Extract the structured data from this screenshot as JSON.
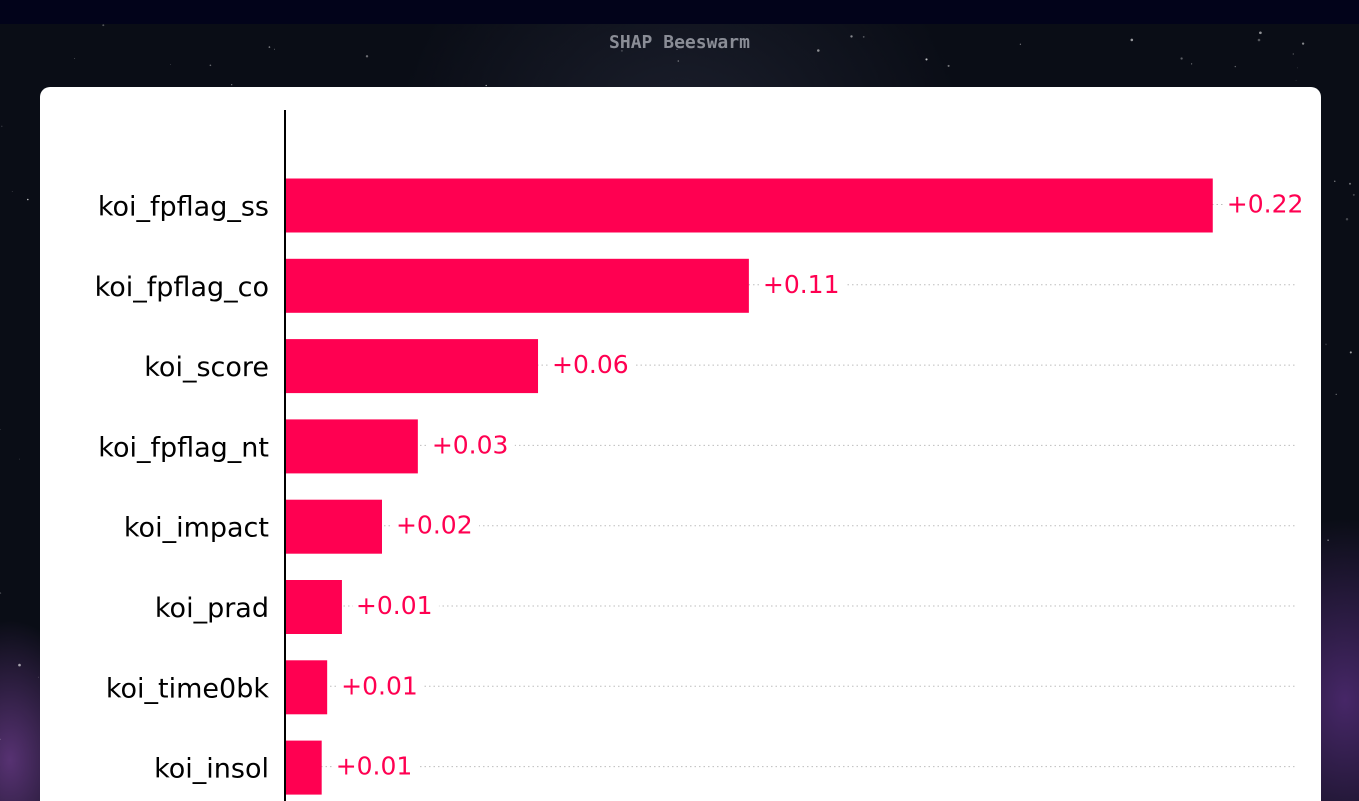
{
  "page": {
    "title": "SHAP Beeswarm"
  },
  "colors": {
    "bar": "#ff0051",
    "value_label": "#ff0051",
    "guide_line": "#bdbdbd",
    "axis": "#000000"
  },
  "chart_data": {
    "type": "bar",
    "orientation": "horizontal",
    "categories": [
      "koi_fpflag_ss",
      "koi_fpflag_co",
      "koi_score",
      "koi_fpflag_nt",
      "koi_impact",
      "koi_prad",
      "koi_time0bk",
      "koi_insol"
    ],
    "values": [
      0.22,
      0.11,
      0.06,
      0.0315,
      0.023,
      0.0135,
      0.01,
      0.0087
    ],
    "data_labels": [
      "+0.22",
      "+0.11",
      "+0.06",
      "+0.03",
      "+0.02",
      "+0.01",
      "+0.01",
      "+0.01"
    ],
    "xlim": [
      0,
      0.2395
    ],
    "grid": false,
    "legend": "none"
  }
}
